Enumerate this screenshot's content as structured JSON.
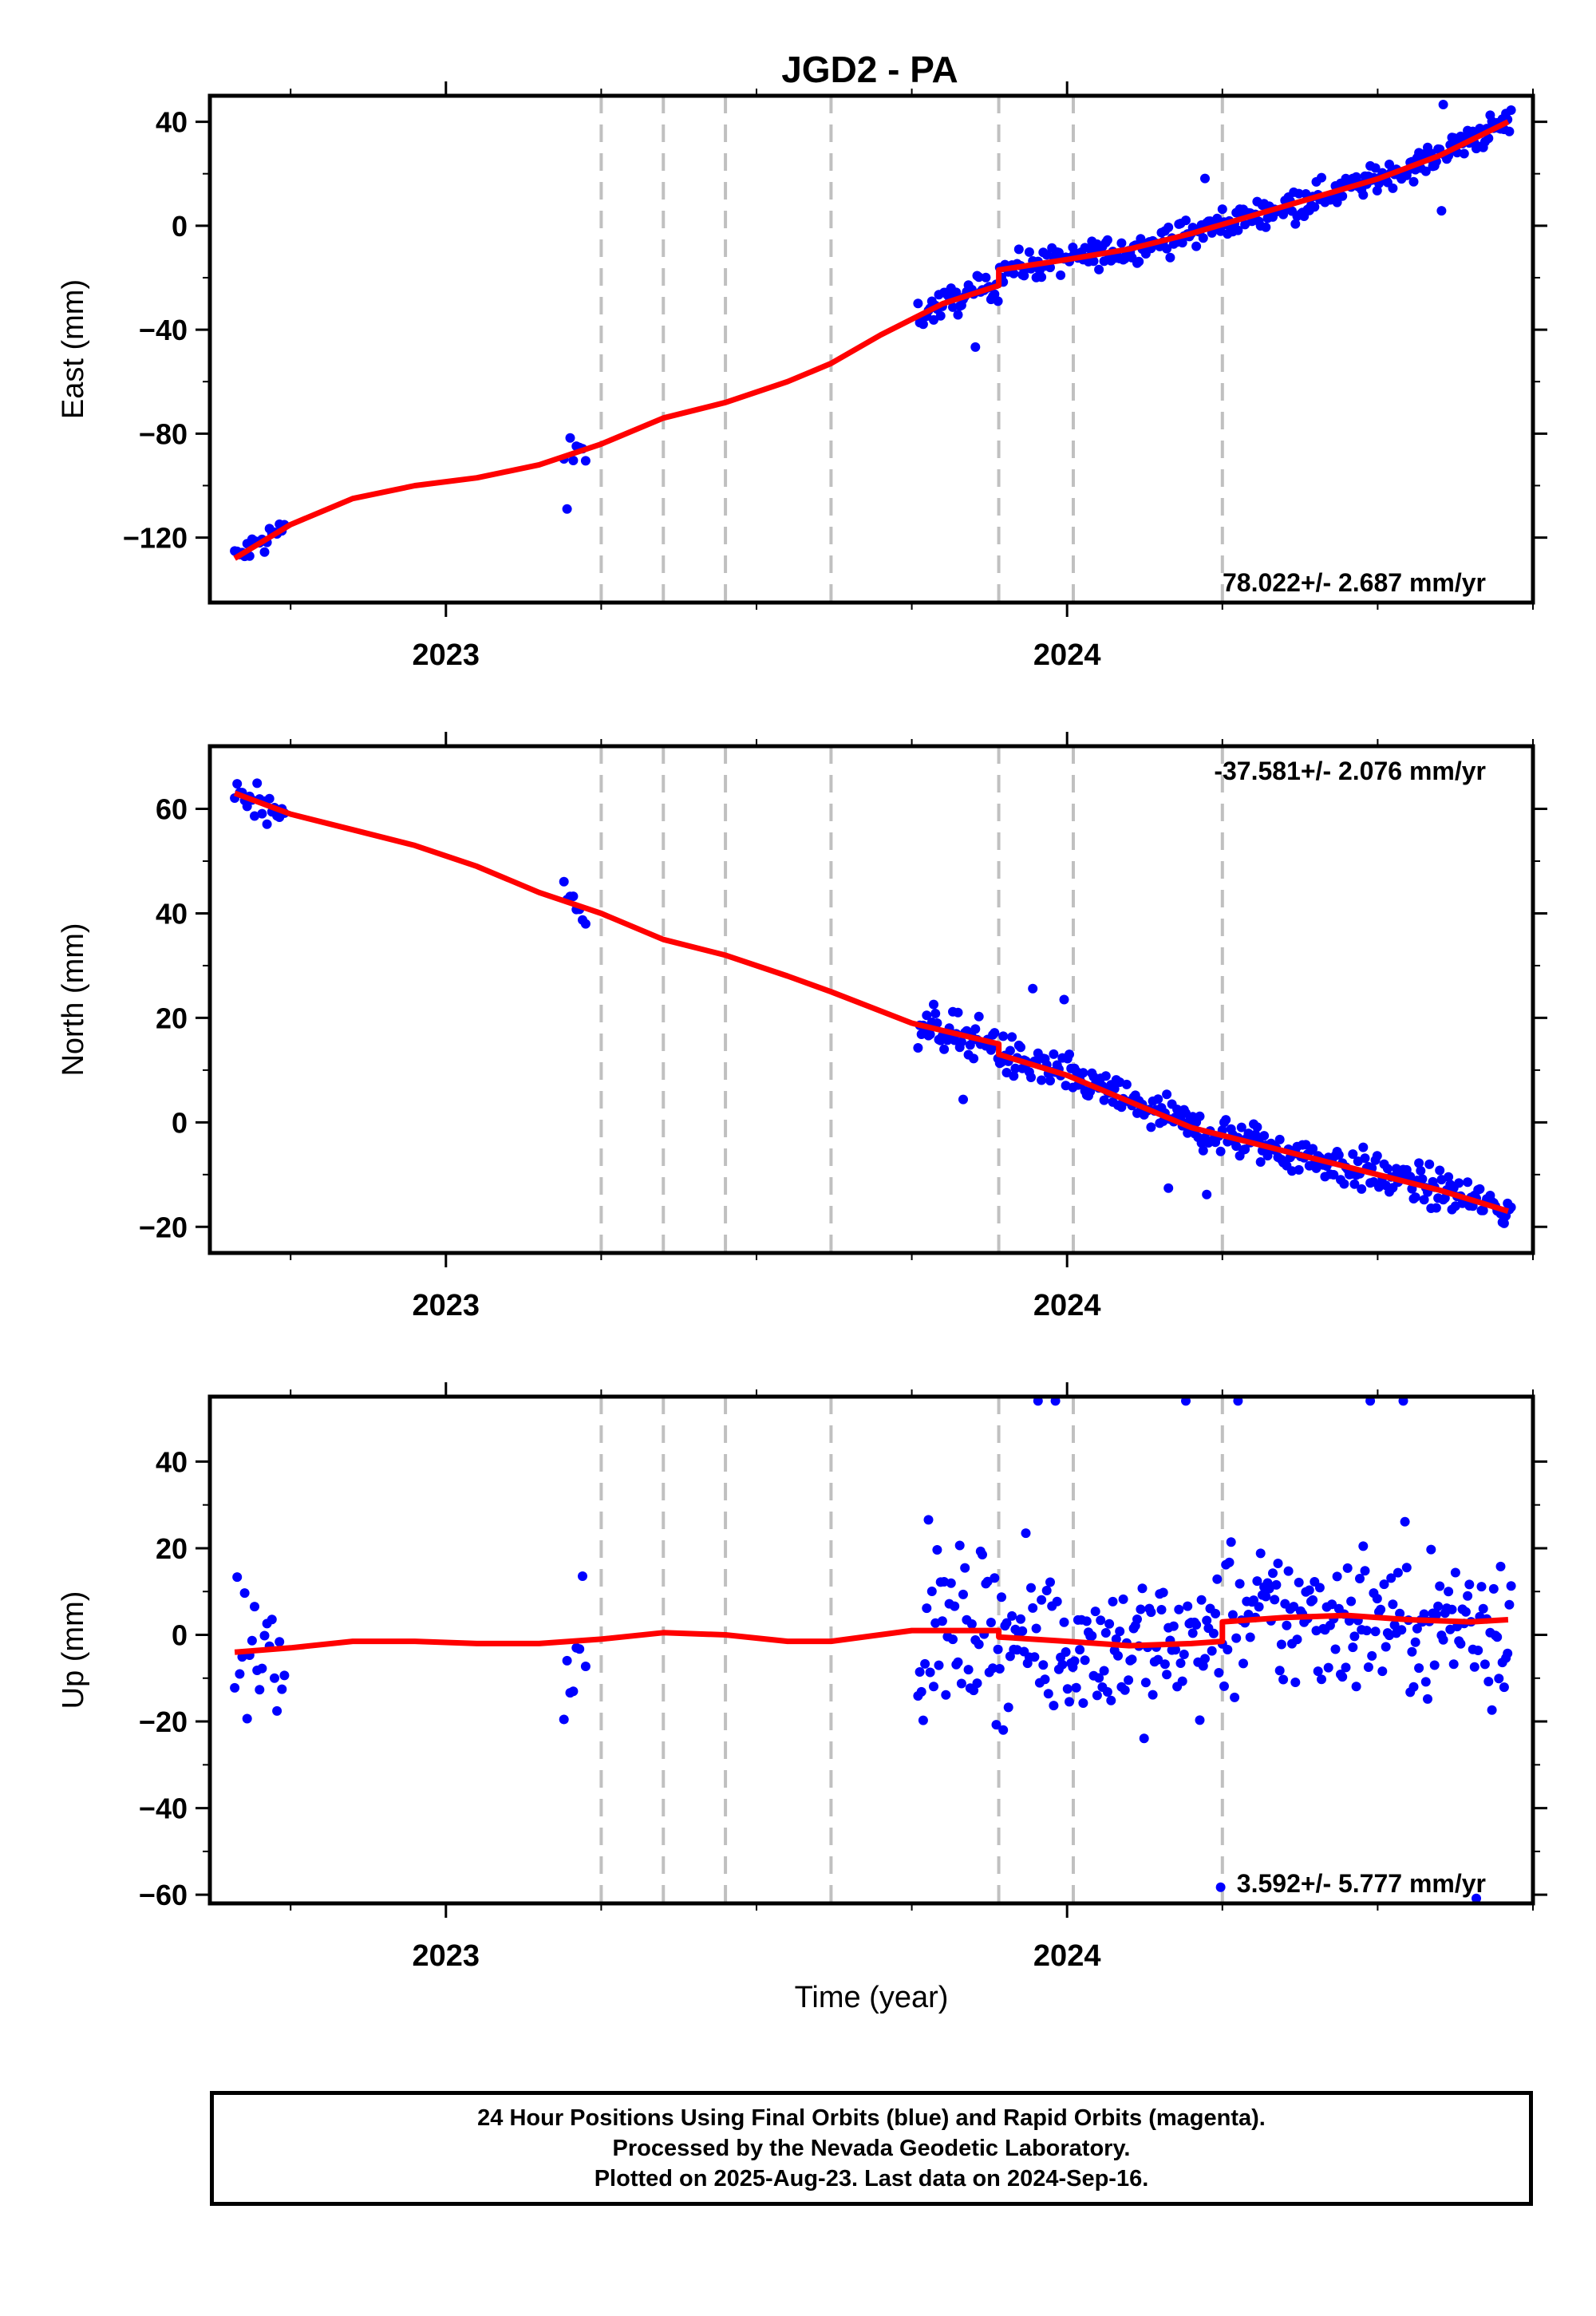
{
  "title": "JGD2 - PA",
  "xlabel": "Time (year)",
  "colors": {
    "final": "#0000ff",
    "rapid": "#ff00ff",
    "model": "#ff0000",
    "breaks": "#c0c0c0"
  },
  "footer": {
    "line1": "24 Hour Positions Using Final Orbits (blue) and Rapid Orbits (magenta).",
    "line2": "Processed by the Nevada Geodetic Laboratory.",
    "line3": "Plotted on 2025-Aug-23. Last data on 2024-Sep-16."
  },
  "chart_data": [
    {
      "type": "scatter",
      "component": "east",
      "ylabel": "East (mm)",
      "xlim": [
        2022.62,
        2024.75
      ],
      "ylim": [
        -145,
        50
      ],
      "yticks": [
        -120,
        -80,
        -40,
        0,
        40
      ],
      "xticks": [
        2023,
        2024
      ],
      "rate_label": "78.022+/- 2.687 mm/yr",
      "rate_position": "bottom-right",
      "grid": false,
      "breaks": [
        2023.25,
        2023.35,
        2023.45,
        2023.62,
        2023.89,
        2024.01,
        2024.25
      ],
      "model": {
        "name": "model",
        "x": [
          2022.66,
          2022.75,
          2022.85,
          2022.95,
          2023.05,
          2023.15,
          2023.25,
          2023.35,
          2023.45,
          2023.55,
          2023.62,
          2023.7,
          2023.8,
          2023.89,
          2023.89,
          2024.0,
          2024.1,
          2024.2,
          2024.3,
          2024.4,
          2024.5,
          2024.6,
          2024.71
        ],
        "y": [
          -128,
          -115,
          -105,
          -100,
          -97,
          -92,
          -84,
          -74,
          -68,
          -60,
          -53,
          -42,
          -30,
          -23,
          -17,
          -13,
          -9,
          -3,
          4,
          11,
          18,
          27,
          40
        ]
      }
    },
    {
      "type": "scatter",
      "component": "north",
      "ylabel": "North (mm)",
      "xlim": [
        2022.62,
        2024.75
      ],
      "ylim": [
        -25,
        72
      ],
      "yticks": [
        -20,
        0,
        20,
        40,
        60
      ],
      "xticks": [
        2023,
        2024
      ],
      "rate_label": "-37.581+/- 2.076 mm/yr",
      "rate_position": "top-right",
      "grid": false,
      "breaks": [
        2023.25,
        2023.35,
        2023.45,
        2023.62,
        2023.89,
        2024.01,
        2024.25
      ],
      "model": {
        "name": "model",
        "x": [
          2022.66,
          2022.75,
          2022.85,
          2022.95,
          2023.05,
          2023.15,
          2023.25,
          2023.35,
          2023.45,
          2023.55,
          2023.62,
          2023.75,
          2023.89,
          2023.89,
          2024.0,
          2024.1,
          2024.2,
          2024.3,
          2024.4,
          2024.5,
          2024.6,
          2024.71
        ],
        "y": [
          63,
          59,
          56,
          53,
          49,
          44,
          40,
          35,
          32,
          28,
          25,
          19,
          15,
          13,
          9,
          4,
          -1,
          -4,
          -7,
          -10,
          -13,
          -17
        ]
      }
    },
    {
      "type": "scatter",
      "component": "up",
      "ylabel": "Up (mm)",
      "xlim": [
        2022.62,
        2024.75
      ],
      "ylim": [
        -62,
        55
      ],
      "yticks": [
        -60,
        -40,
        -20,
        0,
        20,
        40
      ],
      "xticks": [
        2023,
        2024
      ],
      "rate_label": "3.592+/- 5.777 mm/yr",
      "rate_position": "bottom-right",
      "grid": false,
      "breaks": [
        2023.25,
        2023.35,
        2023.45,
        2023.62,
        2023.89,
        2024.01,
        2024.25
      ],
      "model": {
        "name": "model",
        "x": [
          2022.66,
          2022.75,
          2022.85,
          2022.95,
          2023.05,
          2023.15,
          2023.25,
          2023.35,
          2023.45,
          2023.55,
          2023.62,
          2023.75,
          2023.89,
          2023.89,
          2024.0,
          2024.1,
          2024.2,
          2024.25,
          2024.25,
          2024.35,
          2024.45,
          2024.55,
          2024.65,
          2024.71
        ],
        "y": [
          -4,
          -3,
          -1.5,
          -1.5,
          -2,
          -2,
          -1,
          0.5,
          0,
          -1.5,
          -1.5,
          1,
          1,
          -0.5,
          -1.5,
          -2.5,
          -2,
          -1.5,
          3,
          4,
          4.5,
          3.5,
          3,
          3.5
        ]
      }
    }
  ]
}
